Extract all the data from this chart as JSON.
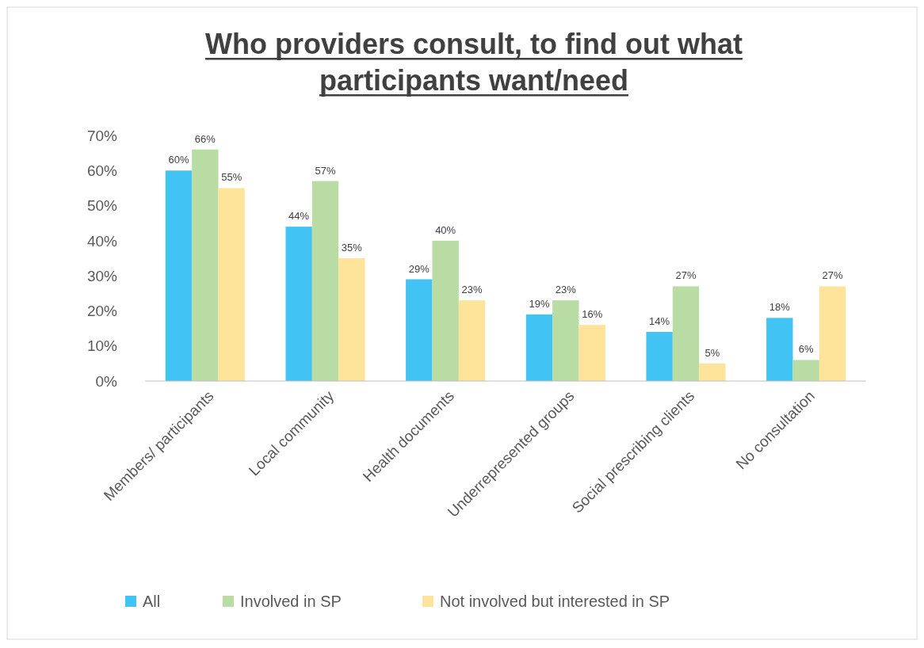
{
  "chart_data": {
    "type": "bar",
    "title": "Who providers consult, to find out what participants want/need",
    "categories": [
      "Members/ participants",
      "Local community",
      "Health documents",
      "Underrepresented groups",
      "Social prescribing clients",
      "No consultation"
    ],
    "series": [
      {
        "name": "All",
        "color": "#41c4f4",
        "values": [
          60,
          44,
          29,
          19,
          14,
          18
        ],
        "value_labels": [
          "60%",
          "44%",
          "29%",
          "19%",
          "14%",
          "18%"
        ]
      },
      {
        "name": "Involved in SP",
        "color": "#b8dca4",
        "values": [
          66,
          57,
          40,
          23,
          27,
          6
        ],
        "value_labels": [
          "66%",
          "57%",
          "40%",
          "23%",
          "27%",
          "6%"
        ]
      },
      {
        "name": "Not involved but interested in SP",
        "color": "#fde49a",
        "values": [
          55,
          35,
          23,
          16,
          5,
          27
        ],
        "value_labels": [
          "55%",
          "35%",
          "23%",
          "16%",
          "5%",
          "27%"
        ]
      }
    ],
    "ylim": [
      0,
      70
    ],
    "yticks": [
      {
        "value": 0,
        "label": "0%"
      },
      {
        "value": 10,
        "label": "10%"
      },
      {
        "value": 20,
        "label": "20%"
      },
      {
        "value": 30,
        "label": "30%"
      },
      {
        "value": 40,
        "label": "40%"
      },
      {
        "value": 50,
        "label": "50%"
      },
      {
        "value": 60,
        "label": "60%"
      },
      {
        "value": 70,
        "label": "70%"
      }
    ],
    "grid": false,
    "legend": "bottom"
  }
}
